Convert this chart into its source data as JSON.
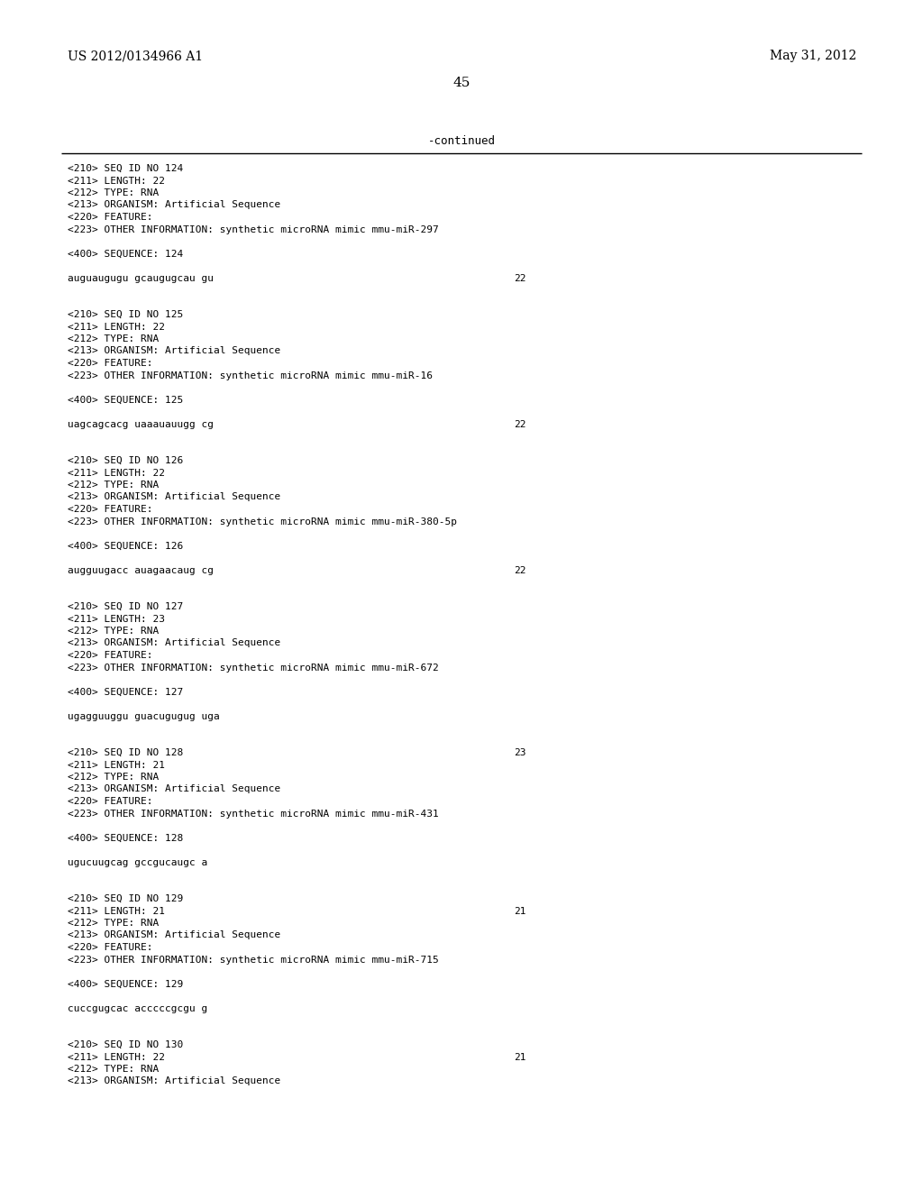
{
  "header_left": "US 2012/0134966 A1",
  "header_right": "May 31, 2012",
  "page_number": "45",
  "continued_label": "-continued",
  "background_color": "#ffffff",
  "text_color": "#000000",
  "font_size_header": 10.0,
  "font_size_body": 8.0,
  "font_size_page": 11.0,
  "font_size_continued": 9.0,
  "content_lines": [
    "<210> SEQ ID NO 124",
    "<211> LENGTH: 22",
    "<212> TYPE: RNA",
    "<213> ORGANISM: Artificial Sequence",
    "<220> FEATURE:",
    "<223> OTHER INFORMATION: synthetic microRNA mimic mmu-miR-297",
    "",
    "<400> SEQUENCE: 124",
    "",
    "auguaugugu gcaugugcau gu",
    "",
    "",
    "<210> SEQ ID NO 125",
    "<211> LENGTH: 22",
    "<212> TYPE: RNA",
    "<213> ORGANISM: Artificial Sequence",
    "<220> FEATURE:",
    "<223> OTHER INFORMATION: synthetic microRNA mimic mmu-miR-16",
    "",
    "<400> SEQUENCE: 125",
    "",
    "uagcagcacg uaaauauugg cg",
    "",
    "",
    "<210> SEQ ID NO 126",
    "<211> LENGTH: 22",
    "<212> TYPE: RNA",
    "<213> ORGANISM: Artificial Sequence",
    "<220> FEATURE:",
    "<223> OTHER INFORMATION: synthetic microRNA mimic mmu-miR-380-5p",
    "",
    "<400> SEQUENCE: 126",
    "",
    "augguugacc auagaacaug cg",
    "",
    "",
    "<210> SEQ ID NO 127",
    "<211> LENGTH: 23",
    "<212> TYPE: RNA",
    "<213> ORGANISM: Artificial Sequence",
    "<220> FEATURE:",
    "<223> OTHER INFORMATION: synthetic microRNA mimic mmu-miR-672",
    "",
    "<400> SEQUENCE: 127",
    "",
    "ugagguuggu guacugugug uga",
    "",
    "",
    "<210> SEQ ID NO 128",
    "<211> LENGTH: 21",
    "<212> TYPE: RNA",
    "<213> ORGANISM: Artificial Sequence",
    "<220> FEATURE:",
    "<223> OTHER INFORMATION: synthetic microRNA mimic mmu-miR-431",
    "",
    "<400> SEQUENCE: 128",
    "",
    "ugucuugcag gccgucaugc a",
    "",
    "",
    "<210> SEQ ID NO 129",
    "<211> LENGTH: 21",
    "<212> TYPE: RNA",
    "<213> ORGANISM: Artificial Sequence",
    "<220> FEATURE:",
    "<223> OTHER INFORMATION: synthetic microRNA mimic mmu-miR-715",
    "",
    "<400> SEQUENCE: 129",
    "",
    "cuccgugcac acccccgcgu g",
    "",
    "",
    "<210> SEQ ID NO 130",
    "<211> LENGTH: 22",
    "<212> TYPE: RNA",
    "<213> ORGANISM: Artificial Sequence"
  ],
  "sequence_numbers": {
    "9": "22",
    "21": "22",
    "33": "22",
    "48": "23",
    "61": "21",
    "73": "21"
  }
}
